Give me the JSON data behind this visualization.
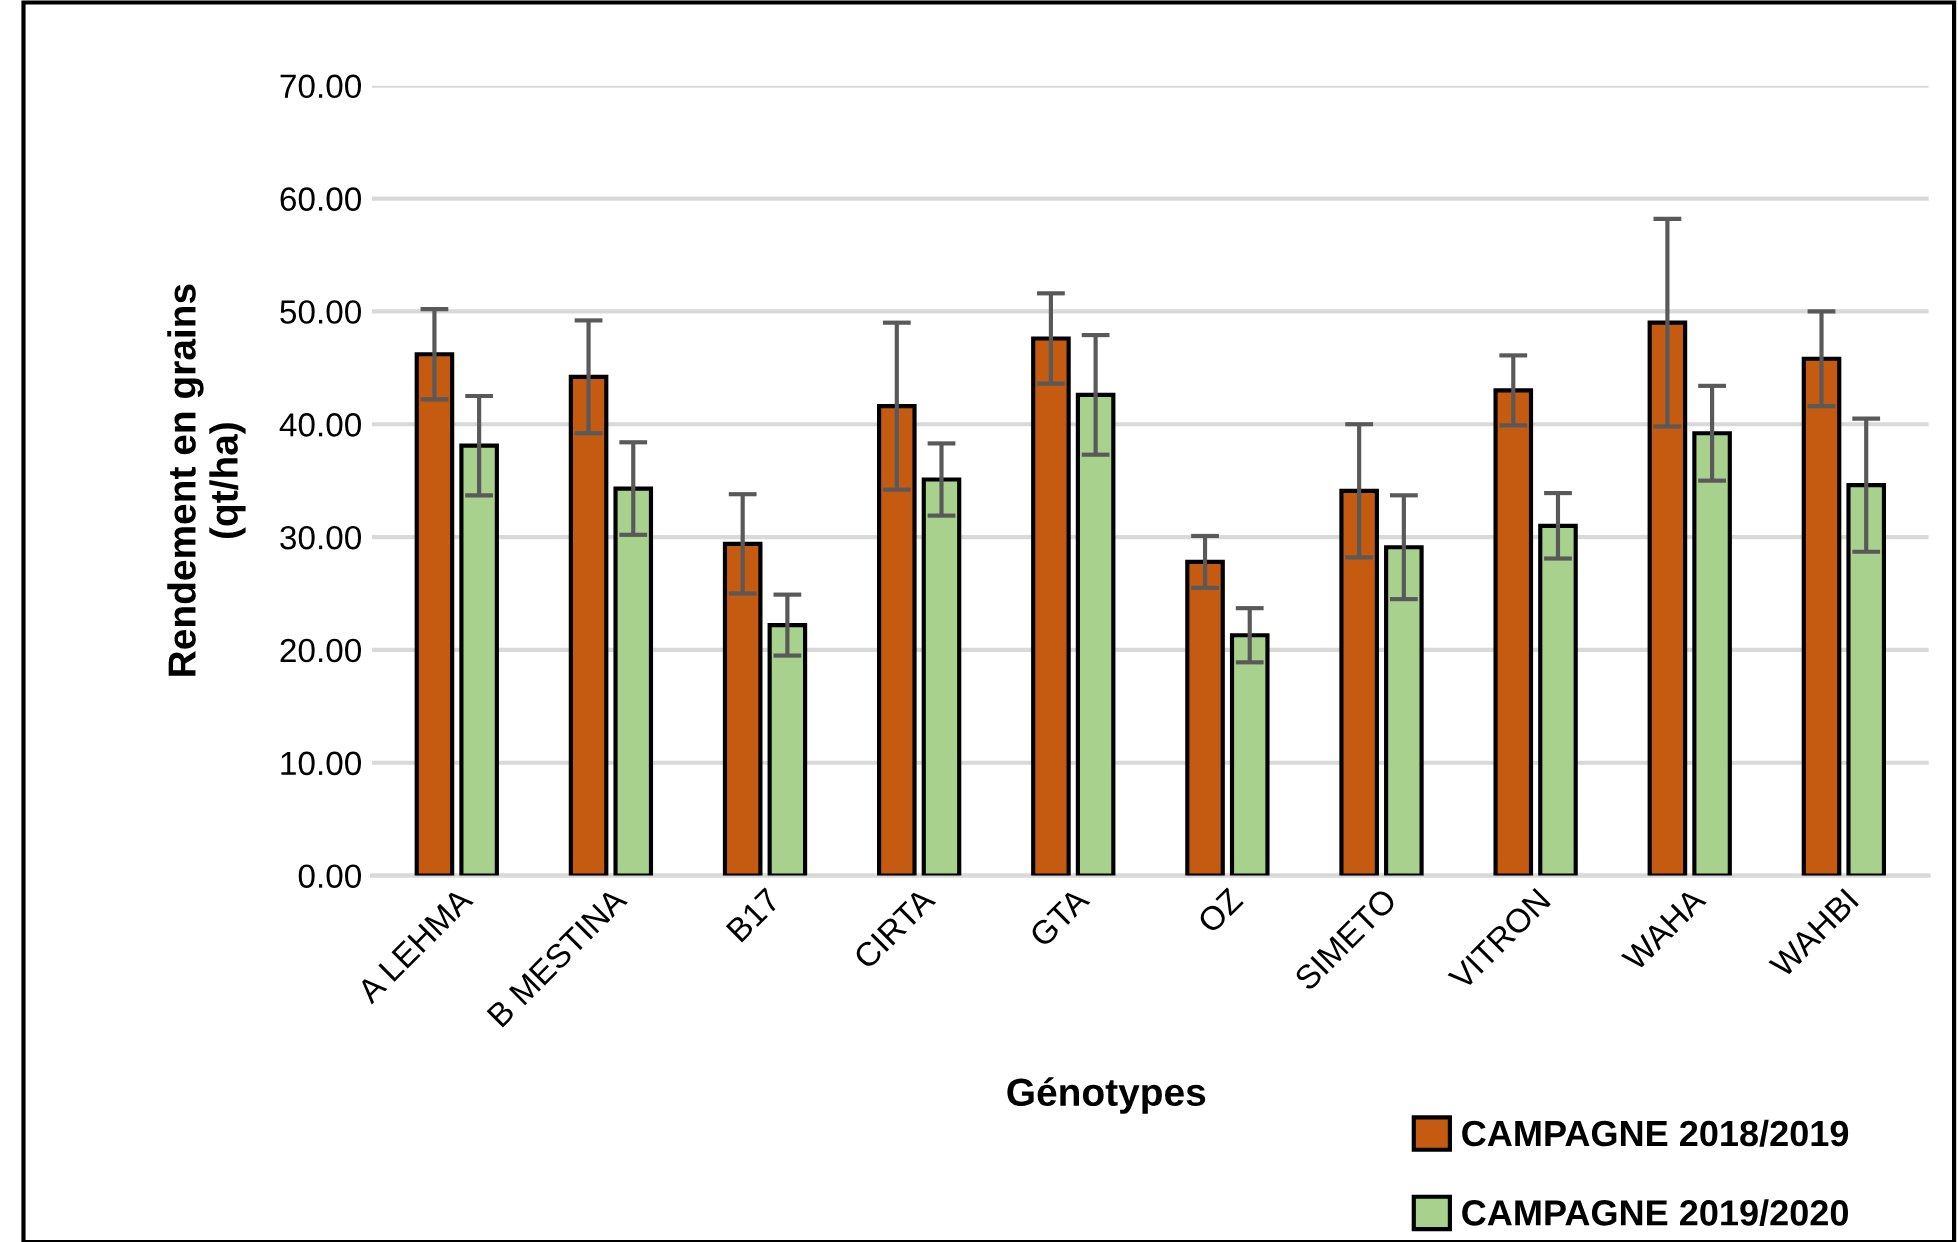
{
  "chart_data": {
    "type": "bar",
    "xlabel": "Génotypes",
    "ylabel": "Rendement en grains\n(qt/ha)",
    "categories": [
      "A LEHMA",
      "B MESTINA",
      "B17",
      "CIRTA",
      "GTA",
      "OZ",
      "SIMETO",
      "VITRON",
      "WAHA",
      "WAHBI"
    ],
    "series": [
      {
        "name": "CAMPAGNE 2018/2019",
        "color": "#c55a11",
        "values": [
          46.2,
          44.2,
          29.4,
          41.6,
          47.6,
          27.8,
          34.1,
          43.0,
          49.0,
          45.8
        ],
        "errors": [
          4.0,
          5.0,
          4.4,
          7.4,
          4.0,
          2.3,
          5.9,
          3.1,
          9.2,
          4.2
        ]
      },
      {
        "name": "CAMPAGNE 2019/2020",
        "color": "#a9d18e",
        "values": [
          38.1,
          34.3,
          22.2,
          35.1,
          42.6,
          21.3,
          29.1,
          31.0,
          39.2,
          34.6
        ],
        "errors": [
          4.4,
          4.1,
          2.7,
          3.2,
          5.3,
          2.4,
          4.6,
          2.9,
          4.2,
          5.9
        ]
      }
    ],
    "ylim": [
      0,
      70
    ],
    "yticks": [
      {
        "value": 0,
        "label": "0.00"
      },
      {
        "value": 10,
        "label": "10.00"
      },
      {
        "value": 20,
        "label": "20.00"
      },
      {
        "value": 30,
        "label": "30.00"
      },
      {
        "value": 40,
        "label": "40.00"
      },
      {
        "value": 50,
        "label": "50.00"
      },
      {
        "value": 60,
        "label": "60.00"
      },
      {
        "value": 70,
        "label": "70.00"
      }
    ],
    "grid": "y",
    "legend": "bottom right"
  }
}
